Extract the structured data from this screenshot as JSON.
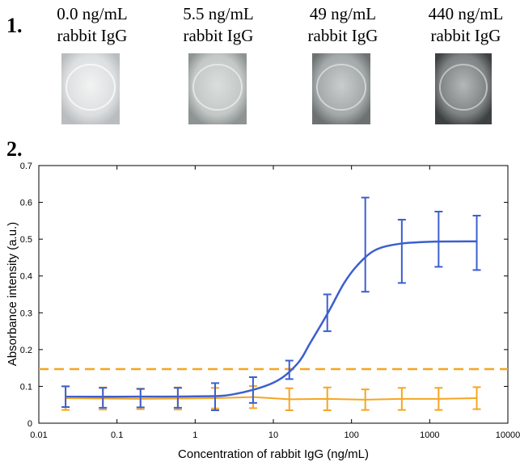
{
  "panel_labels": [
    "1.",
    "2."
  ],
  "photos": [
    {
      "line1": "0.0 ng/mL",
      "line2": "rabbit IgG"
    },
    {
      "line1": "5.5 ng/mL",
      "line2": "rabbit IgG"
    },
    {
      "line1": "49 ng/mL",
      "line2": "rabbit IgG"
    },
    {
      "line1": "440 ng/mL",
      "line2": "rabbit IgG"
    }
  ],
  "chart_data": {
    "type": "line",
    "xlabel": "Concentration of rabbit IgG (ng/mL)",
    "ylabel": "Absorbance intensity (a.u.)",
    "xscale": "log",
    "xlim": [
      0.01,
      10000
    ],
    "xticks": [
      0.01,
      0.1,
      1,
      10,
      100,
      1000,
      10000
    ],
    "ylim": [
      0,
      0.7
    ],
    "yticks": [
      0,
      0.1,
      0.2,
      0.3,
      0.4,
      0.5,
      0.6,
      0.7
    ],
    "x": [
      0.022,
      0.066,
      0.2,
      0.6,
      1.8,
      5.5,
      16,
      49,
      150,
      440,
      1300,
      4000
    ],
    "series": [
      {
        "color": "#3b5fcf",
        "smooth": true,
        "values": [
          0.072,
          0.069,
          0.068,
          0.069,
          0.072,
          0.09,
          0.145,
          0.3,
          0.485,
          0.467,
          0.5,
          0.49
        ],
        "errors": [
          0.028,
          0.027,
          0.025,
          0.027,
          0.037,
          0.035,
          0.025,
          0.05,
          0.128,
          0.086,
          0.075,
          0.074
        ]
      },
      {
        "color": "#f5a623",
        "smooth": false,
        "values": [
          0.068,
          0.067,
          0.066,
          0.067,
          0.068,
          0.071,
          0.065,
          0.066,
          0.064,
          0.066,
          0.066,
          0.068
        ],
        "errors": [
          0.032,
          0.03,
          0.028,
          0.03,
          0.028,
          0.03,
          0.03,
          0.031,
          0.028,
          0.03,
          0.03,
          0.03
        ]
      }
    ],
    "fit": {
      "color": "#3b5fcf",
      "x": [
        0.022,
        0.1,
        1,
        3,
        10,
        20,
        30,
        50,
        80,
        120,
        200,
        400,
        1000,
        4000
      ],
      "values": [
        0.072,
        0.072,
        0.073,
        0.078,
        0.11,
        0.16,
        0.22,
        0.3,
        0.38,
        0.43,
        0.47,
        0.487,
        0.493,
        0.494
      ]
    },
    "threshold": {
      "value": 0.147,
      "color": "#f5a623"
    }
  }
}
